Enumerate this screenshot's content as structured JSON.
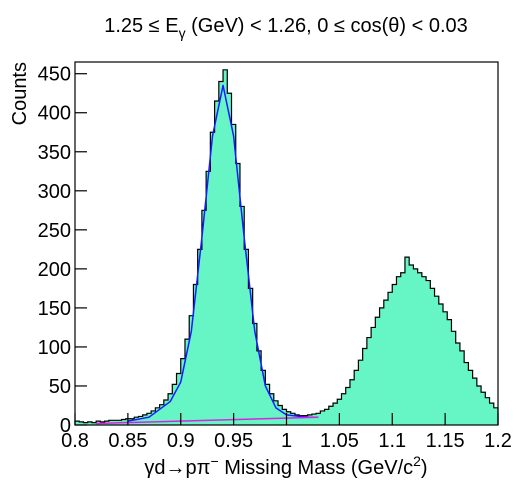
{
  "chart_data": {
    "type": "histogram",
    "title": [
      "1.25 ≤ E",
      "γ",
      " (GeV) < 1.26, 0 ≤ cos(θ) < 0.03"
    ],
    "xlabel": [
      "γd→pπ",
      "−",
      " Missing Mass (GeV/c",
      "2",
      ")"
    ],
    "ylabel": "Counts",
    "color": "#66f5c4",
    "edge_color": "#000000",
    "xlim": [
      0.8,
      1.2
    ],
    "ylim": [
      0,
      465
    ],
    "xticks": [
      0.8,
      0.85,
      0.9,
      0.95,
      1,
      1.05,
      1.1,
      1.15,
      1.2
    ],
    "yticks": [
      0,
      50,
      100,
      150,
      200,
      250,
      300,
      350,
      400,
      450
    ],
    "bins": [
      0.8,
      0.804,
      0.808,
      0.812,
      0.816,
      0.82,
      0.824,
      0.828,
      0.832,
      0.836,
      0.84,
      0.844,
      0.848,
      0.852,
      0.856,
      0.86,
      0.864,
      0.868,
      0.872,
      0.876,
      0.88,
      0.884,
      0.888,
      0.892,
      0.896,
      0.9,
      0.904,
      0.908,
      0.912,
      0.916,
      0.92,
      0.924,
      0.928,
      0.932,
      0.936,
      0.94,
      0.944,
      0.948,
      0.952,
      0.956,
      0.96,
      0.964,
      0.968,
      0.972,
      0.976,
      0.98,
      0.984,
      0.988,
      0.992,
      0.996,
      1,
      1.004,
      1.008,
      1.012,
      1.016,
      1.02,
      1.024,
      1.028,
      1.032,
      1.036,
      1.04,
      1.044,
      1.048,
      1.052,
      1.056,
      1.06,
      1.064,
      1.068,
      1.072,
      1.076,
      1.08,
      1.084,
      1.088,
      1.092,
      1.096,
      1.1,
      1.104,
      1.108,
      1.112,
      1.116,
      1.12,
      1.124,
      1.128,
      1.132,
      1.136,
      1.14,
      1.144,
      1.148,
      1.152,
      1.156,
      1.16,
      1.164,
      1.168,
      1.172,
      1.176,
      1.18,
      1.184,
      1.188,
      1.192,
      1.196,
      1.2
    ],
    "values": [
      5,
      4,
      3,
      4,
      3,
      5,
      4,
      5,
      6,
      6,
      6,
      7,
      8,
      8,
      10,
      11,
      13,
      15,
      18,
      22,
      26,
      32,
      40,
      52,
      66,
      85,
      110,
      140,
      180,
      225,
      275,
      325,
      375,
      415,
      440,
      455,
      425,
      385,
      335,
      280,
      225,
      175,
      130,
      95,
      70,
      52,
      40,
      31,
      25,
      20,
      17,
      15,
      13,
      12,
      12,
      13,
      14,
      15,
      18,
      20,
      24,
      28,
      33,
      40,
      48,
      58,
      70,
      83,
      98,
      112,
      125,
      138,
      150,
      160,
      170,
      180,
      190,
      195,
      215,
      205,
      200,
      195,
      190,
      185,
      175,
      165,
      155,
      145,
      135,
      120,
      105,
      95,
      80,
      70,
      60,
      50,
      42,
      35,
      28,
      22
    ],
    "fits": [
      {
        "color": "#1a1aff",
        "x": [
          0.85,
          0.87,
          0.89,
          0.9,
          0.91,
          0.92,
          0.93,
          0.94,
          0.95,
          0.96,
          0.97,
          0.98,
          0.99,
          1,
          1.02,
          1.03
        ],
        "values": [
          5,
          10,
          30,
          55,
          120,
          240,
          370,
          435,
          370,
          240,
          120,
          50,
          22,
          13,
          10,
          10
        ]
      },
      {
        "color": "#e020e0",
        "x": [
          0.82,
          1.03
        ],
        "values": [
          2,
          10
        ]
      }
    ]
  }
}
